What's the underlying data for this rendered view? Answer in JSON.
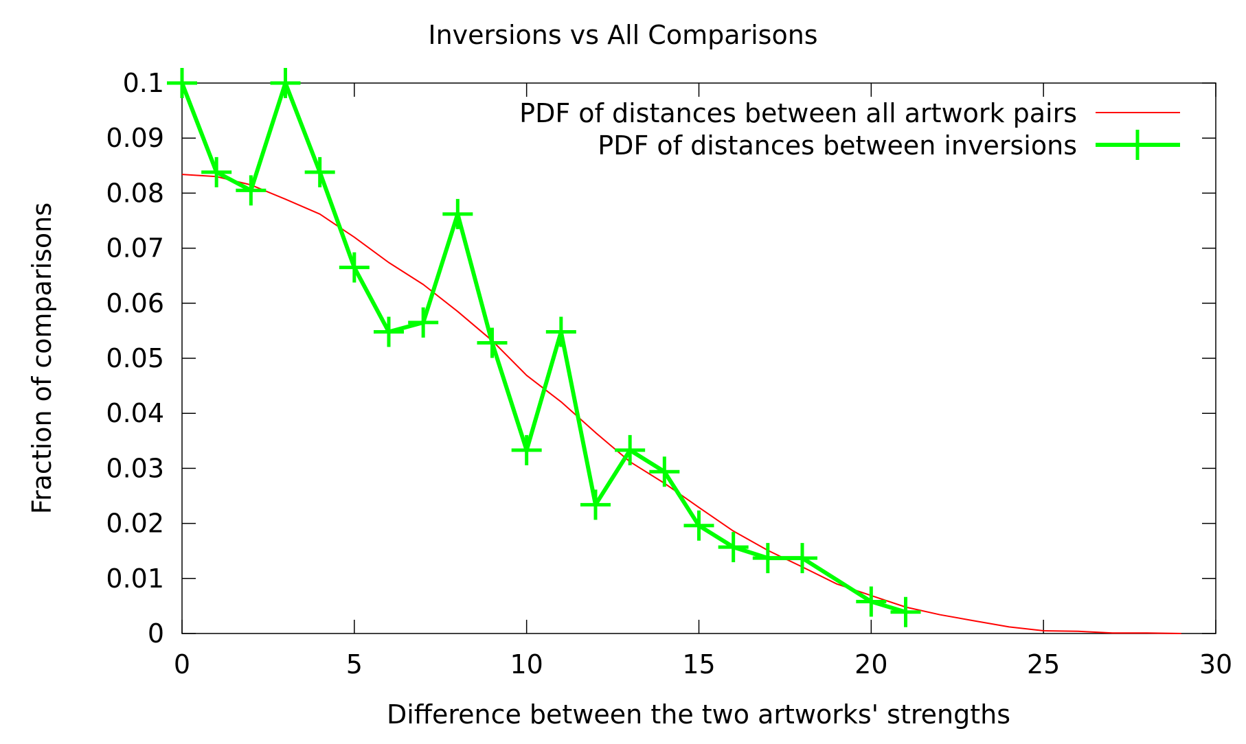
{
  "chart_data": {
    "type": "line",
    "title": "Inversions vs All Comparisons",
    "xlabel": "Difference between the two artworks' strengths",
    "ylabel": "Fraction of comparisons",
    "xlim": [
      0,
      30
    ],
    "ylim": [
      0,
      0.1
    ],
    "xticks": [
      "0",
      "5",
      "10",
      "15",
      "20",
      "25",
      "30"
    ],
    "yticks": [
      "0",
      "0.01",
      "0.02",
      "0.03",
      "0.04",
      "0.05",
      "0.06",
      "0.07",
      "0.08",
      "0.09",
      "0.1"
    ],
    "grid": false,
    "legend_position": "top-right",
    "series": [
      {
        "name": "PDF of distances between all artwork pairs",
        "color": "#ff0000",
        "marker": "none",
        "x": [
          0,
          1,
          2,
          3,
          4,
          5,
          6,
          7,
          8,
          9,
          10,
          11,
          12,
          13,
          14,
          15,
          16,
          17,
          18,
          19,
          20,
          21,
          22,
          23,
          24,
          25,
          26,
          27,
          28,
          29
        ],
        "y": [
          0.0834,
          0.083,
          0.0815,
          0.0789,
          0.0762,
          0.072,
          0.0674,
          0.0634,
          0.0585,
          0.0532,
          0.0469,
          0.0421,
          0.0365,
          0.0312,
          0.0273,
          0.0229,
          0.0186,
          0.0151,
          0.0121,
          0.009,
          0.0069,
          0.0048,
          0.0034,
          0.0023,
          0.0012,
          0.0005,
          0.0004,
          0.0001,
          0.0001,
          0.0
        ]
      },
      {
        "name": "PDF of distances between inversions",
        "color": "#00ff00",
        "marker": "plus",
        "x": [
          0,
          1,
          2,
          3,
          4,
          5,
          6,
          7,
          8,
          9,
          10,
          11,
          12,
          13,
          14,
          15,
          16,
          17,
          18,
          20,
          21
        ],
        "y": [
          0.1,
          0.0838,
          0.0805,
          0.1,
          0.0838,
          0.0665,
          0.0548,
          0.0565,
          0.0762,
          0.0528,
          0.0333,
          0.0548,
          0.0234,
          0.0333,
          0.0294,
          0.0196,
          0.0157,
          0.0137,
          0.0137,
          0.0058,
          0.0039
        ]
      }
    ]
  }
}
